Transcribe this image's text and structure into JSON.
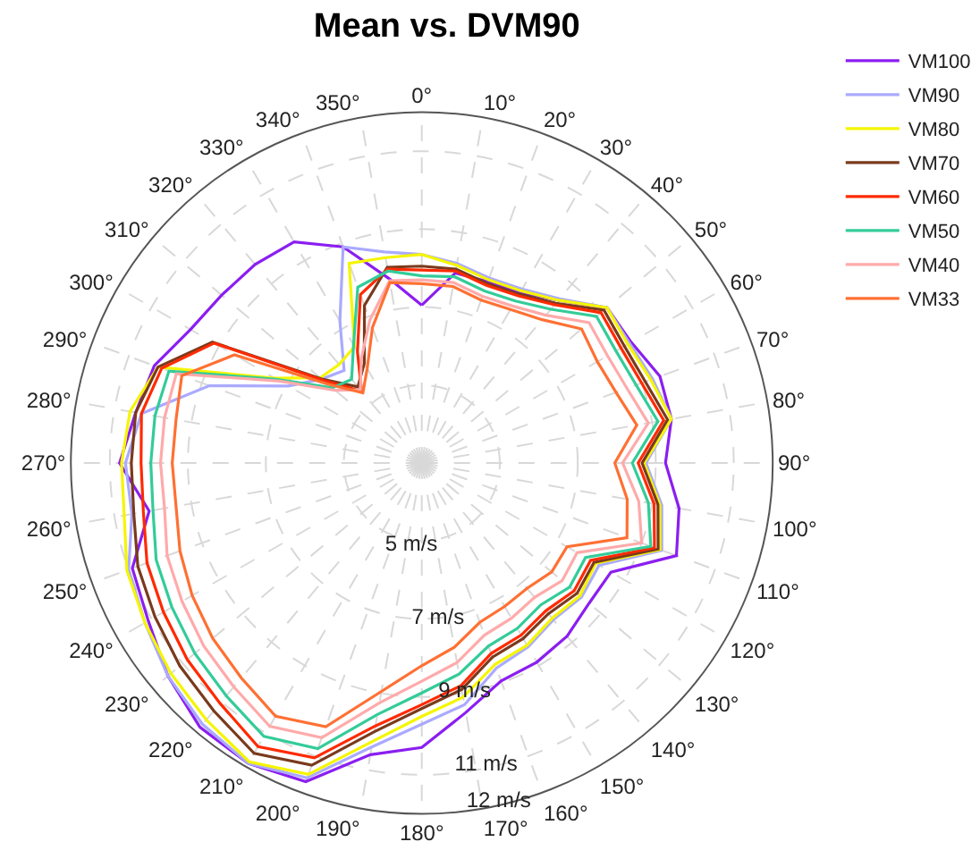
{
  "chart_data": {
    "type": "radar",
    "title": "Mean vs. DVM90",
    "categories": [
      "0°",
      "10°",
      "20°",
      "30°",
      "40°",
      "50°",
      "60°",
      "70°",
      "80°",
      "90°",
      "100°",
      "110°",
      "120°",
      "130°",
      "140°",
      "150°",
      "160°",
      "170°",
      "180°",
      "190°",
      "200°",
      "210°",
      "220°",
      "230°",
      "240°",
      "250°",
      "260°",
      "270°",
      "280°",
      "290°",
      "300°",
      "310°",
      "320°",
      "330°",
      "340°",
      "350°"
    ],
    "series": [
      {
        "name": "VM100",
        "color": "#8b1ef0",
        "values": [
          7.05,
          7.95,
          7.95,
          8.05,
          8.45,
          9.2,
          9.2,
          9.5,
          9.5,
          9.25,
          9.7,
          9.95,
          8.6,
          8.6,
          8.8,
          8.9,
          8.95,
          9.5,
          10.3,
          10.6,
          11.7,
          11.9,
          11.85,
          11.5,
          11.1,
          10.9,
          10.1,
          10.75,
          10.45,
          10.3,
          9.85,
          9.7,
          9.65,
          9.55,
          8.9,
          7.8
        ]
      },
      {
        "name": "VM90",
        "color": "#aaaaff",
        "values": [
          8.35,
          8.2,
          8.05,
          8.15,
          8.5,
          9.2,
          9.15,
          9.3,
          9.5,
          8.75,
          9.25,
          9.55,
          8.25,
          8.35,
          8.25,
          8.45,
          8.6,
          9.3,
          9.7,
          10.4,
          11.6,
          11.9,
          11.75,
          11.5,
          11.2,
          11.0,
          10.55,
          10.6,
          10.3,
          8.8,
          6.95,
          6.35,
          6.1,
          7.2,
          8.9,
          8.5
        ]
      },
      {
        "name": "VM80",
        "color": "#f5f500",
        "values": [
          8.35,
          8.15,
          8.0,
          8.1,
          8.45,
          9.2,
          9.1,
          9.25,
          9.5,
          8.7,
          9.2,
          9.5,
          8.15,
          8.3,
          8.2,
          8.4,
          8.5,
          9.1,
          9.5,
          10.25,
          11.5,
          11.85,
          11.6,
          11.4,
          11.2,
          11.05,
          10.75,
          10.7,
          10.6,
          10.2,
          7.35,
          6.4,
          6.3,
          6.45,
          8.45,
          8.35
        ]
      },
      {
        "name": "VM70",
        "color": "#7a3a1c",
        "values": [
          8.05,
          8.05,
          7.9,
          8.0,
          8.35,
          9.1,
          9.0,
          9.1,
          9.4,
          8.65,
          9.15,
          9.45,
          8.1,
          8.2,
          8.05,
          8.2,
          8.3,
          8.9,
          9.3,
          10.0,
          11.25,
          11.6,
          11.3,
          11.1,
          10.9,
          10.75,
          10.5,
          10.45,
          10.45,
          10.2,
          9.2,
          6.35,
          5.55,
          5.95,
          7.3,
          8.1
        ]
      },
      {
        "name": "VM60",
        "color": "#ff2a00",
        "values": [
          7.95,
          8.0,
          7.85,
          7.95,
          8.3,
          9.0,
          8.9,
          9.0,
          9.3,
          8.55,
          9.05,
          9.35,
          8.0,
          8.1,
          7.95,
          8.1,
          8.2,
          8.8,
          9.2,
          9.85,
          11.05,
          11.4,
          11.05,
          10.85,
          10.65,
          10.5,
          10.25,
          10.2,
          10.3,
          10.1,
          9.15,
          6.3,
          5.4,
          6.3,
          7.6,
          8.05
        ]
      },
      {
        "name": "VM50",
        "color": "#33cc99",
        "values": [
          7.8,
          7.85,
          7.7,
          7.8,
          8.15,
          8.85,
          8.75,
          8.85,
          9.15,
          8.4,
          8.9,
          9.25,
          7.85,
          7.95,
          7.75,
          7.9,
          8.0,
          8.5,
          8.9,
          9.55,
          10.8,
          11.1,
          10.8,
          10.6,
          10.4,
          10.25,
          10.0,
          9.95,
          9.95,
          9.9,
          7.3,
          6.0,
          5.8,
          6.5,
          7.8,
          8.0
        ]
      },
      {
        "name": "VM40",
        "color": "#ffaaaa",
        "values": [
          7.7,
          7.7,
          7.55,
          7.65,
          7.95,
          8.6,
          8.5,
          8.6,
          8.9,
          8.15,
          8.65,
          9.0,
          7.6,
          7.7,
          7.5,
          7.6,
          7.7,
          8.2,
          8.6,
          9.25,
          10.5,
          10.8,
          10.5,
          10.3,
          10.1,
          9.95,
          9.7,
          9.7,
          9.7,
          9.7,
          7.2,
          5.9,
          5.45,
          6.1,
          6.9,
          7.75
        ]
      },
      {
        "name": "VM33",
        "color": "#ff7033",
        "values": [
          7.6,
          7.6,
          7.45,
          7.55,
          7.8,
          8.35,
          8.2,
          8.3,
          8.6,
          7.95,
          8.35,
          8.6,
          7.3,
          7.35,
          7.2,
          7.25,
          7.35,
          7.8,
          8.2,
          8.95,
          10.2,
          10.5,
          10.2,
          10.0,
          9.8,
          9.6,
          9.4,
          9.4,
          9.4,
          9.55,
          8.55,
          6.15,
          5.35,
          5.8,
          6.7,
          7.7
        ]
      }
    ],
    "ylim": [
      3,
      12
    ],
    "yticks": [
      {
        "value": 5,
        "label": "5 m/s"
      },
      {
        "value": 7,
        "label": "7 m/s"
      },
      {
        "value": 9,
        "label": "9 m/s"
      },
      {
        "value": 11,
        "label": "11 m/s"
      },
      {
        "value": 12,
        "label": "12 m/s"
      }
    ],
    "grid": true,
    "legend": "top right",
    "marker": "none",
    "line_style": "solid"
  }
}
